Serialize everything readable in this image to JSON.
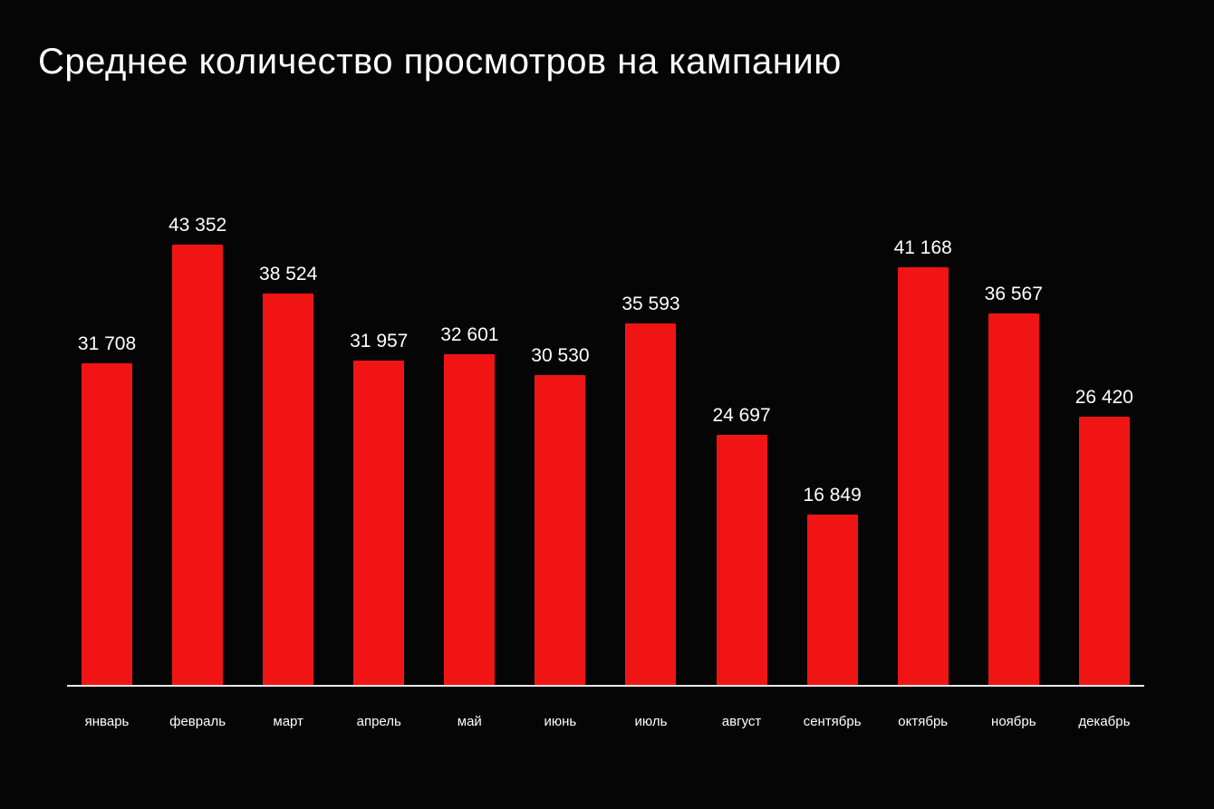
{
  "title": "Среднее количество просмотров на кампанию",
  "chart_data": {
    "type": "bar",
    "title": "Среднее количество просмотров на кампанию",
    "categories": [
      "январь",
      "февраль",
      "март",
      "апрель",
      "май",
      "июнь",
      "июль",
      "август",
      "сентябрь",
      "октябрь",
      "ноябрь",
      "декабрь"
    ],
    "values": [
      31708,
      43352,
      38524,
      31957,
      32601,
      30530,
      35593,
      24697,
      16849,
      41168,
      36567,
      26420
    ],
    "value_labels": [
      "31 708",
      "43 352",
      "38 524",
      "31 957",
      "32 601",
      "30 530",
      "35 593",
      "24 697",
      "16 849",
      "41 168",
      "36 567",
      "26 420"
    ],
    "xlabel": "",
    "ylabel": "",
    "ylim": [
      0,
      43352
    ],
    "grid": false,
    "legend": false,
    "bar_color": "#f11414",
    "background_color": "#050505",
    "text_color": "#ffffff",
    "axis_line_color": "#e8e8e8"
  }
}
